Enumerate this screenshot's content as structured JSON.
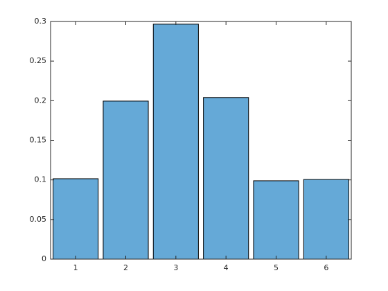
{
  "chart_data": {
    "type": "bar",
    "categories": [
      "1",
      "2",
      "3",
      "4",
      "5",
      "6"
    ],
    "values": [
      0.1015,
      0.1995,
      0.2966,
      0.204,
      0.0989,
      0.1006
    ],
    "color": "#65a9d7",
    "ylim": [
      0,
      0.3
    ],
    "yticks": [
      0,
      0.05,
      0.1,
      0.15,
      0.2,
      0.25,
      0.3
    ],
    "grid": false
  }
}
